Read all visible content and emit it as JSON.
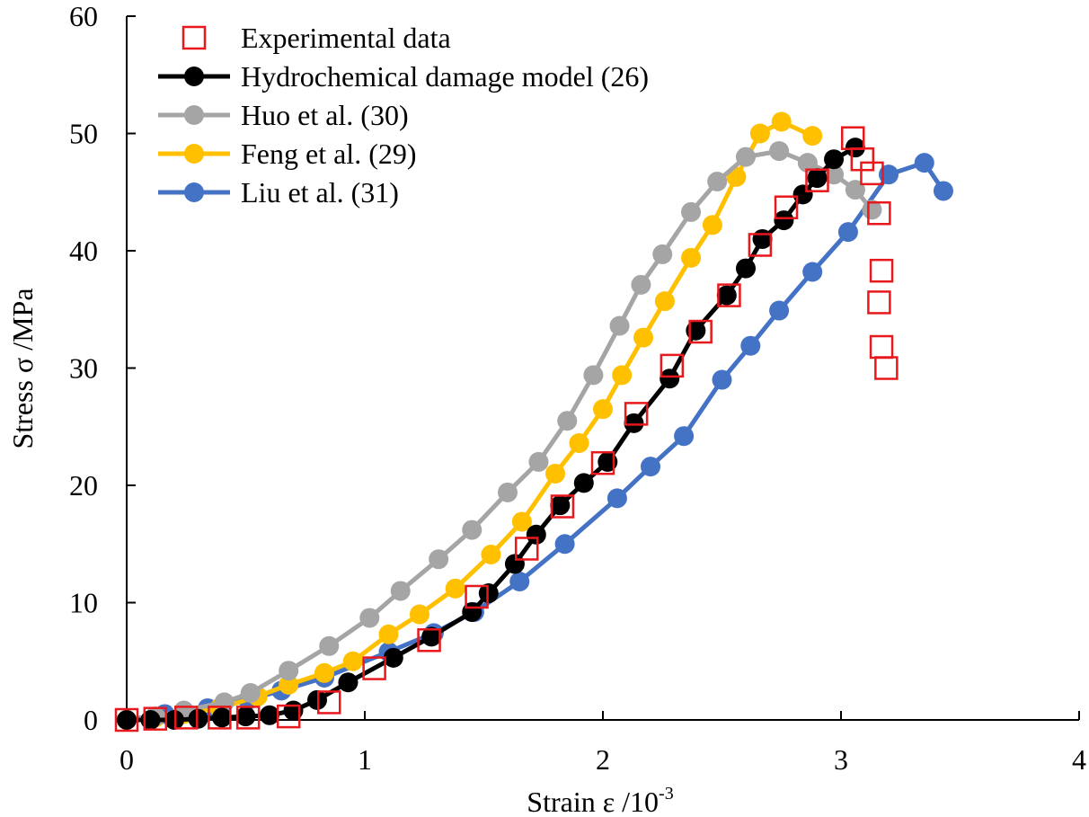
{
  "chart_data": {
    "type": "line",
    "title": "",
    "xlabel": "Strain ε /10",
    "xlabel_superscript": "-3",
    "ylabel": "Stress σ /MPa",
    "xlim": [
      0,
      4
    ],
    "ylim": [
      0,
      60
    ],
    "x_ticks": [
      "0",
      "1",
      "2",
      "3",
      "4"
    ],
    "y_ticks": [
      "0",
      "10",
      "20",
      "30",
      "40",
      "50",
      "60"
    ],
    "grid": false,
    "legend_position": "top-left",
    "series": [
      {
        "name": "Experimental data",
        "style": "marker",
        "marker": "square-open",
        "color": "#e8191c",
        "x": [
          0.0,
          0.12,
          0.25,
          0.39,
          0.51,
          0.68,
          0.85,
          1.04,
          1.27,
          1.47,
          1.68,
          1.83,
          2.0,
          2.14,
          2.29,
          2.41,
          2.53,
          2.66,
          2.77,
          2.9,
          3.05,
          3.09,
          3.13,
          3.16,
          3.17,
          3.16,
          3.17,
          3.19
        ],
        "y": [
          0.0,
          0.1,
          0.2,
          0.2,
          0.2,
          0.3,
          1.5,
          4.4,
          6.8,
          10.5,
          14.6,
          18.2,
          21.9,
          26.1,
          30.2,
          33.1,
          36.2,
          40.5,
          43.7,
          46.0,
          49.6,
          47.8,
          46.6,
          43.2,
          38.3,
          35.6,
          31.8,
          30.0
        ]
      },
      {
        "name": "Hydrochemical damage model (26)",
        "style": "line-marker",
        "marker": "circle",
        "color": "#000000",
        "x": [
          0.0,
          0.1,
          0.2,
          0.3,
          0.4,
          0.5,
          0.6,
          0.7,
          0.8,
          0.93,
          1.12,
          1.28,
          1.45,
          1.52,
          1.63,
          1.72,
          1.82,
          1.92,
          2.02,
          2.13,
          2.28,
          2.39,
          2.52,
          2.6,
          2.67,
          2.76,
          2.84,
          2.9,
          2.97,
          3.06
        ],
        "y": [
          0.0,
          0.0,
          0.0,
          0.1,
          0.2,
          0.3,
          0.4,
          0.8,
          1.7,
          3.2,
          5.3,
          7.1,
          9.2,
          10.8,
          13.3,
          15.8,
          18.3,
          20.2,
          22.0,
          25.3,
          29.1,
          33.2,
          36.2,
          38.5,
          41.0,
          42.6,
          44.8,
          46.2,
          47.8,
          48.8
        ]
      },
      {
        "name": "Huo et al. (30)",
        "style": "line-marker",
        "marker": "circle",
        "color": "#a5a5a5",
        "x": [
          0.0,
          0.12,
          0.24,
          0.41,
          0.52,
          0.68,
          0.85,
          1.02,
          1.15,
          1.31,
          1.45,
          1.6,
          1.73,
          1.85,
          1.96,
          2.07,
          2.16,
          2.25,
          2.37,
          2.48,
          2.6,
          2.74,
          2.86,
          2.97,
          3.06,
          3.13
        ],
        "y": [
          0.0,
          0.3,
          0.8,
          1.5,
          2.3,
          4.2,
          6.3,
          8.7,
          11.0,
          13.7,
          16.2,
          19.4,
          22.0,
          25.5,
          29.4,
          33.6,
          37.1,
          39.7,
          43.3,
          45.9,
          48.0,
          48.5,
          47.5,
          46.5,
          45.2,
          43.5
        ]
      },
      {
        "name": "Feng et al. (29)",
        "style": "line-marker",
        "marker": "circle",
        "color": "#ffc000",
        "x": [
          0.0,
          0.12,
          0.24,
          0.39,
          0.55,
          0.68,
          0.83,
          0.95,
          1.1,
          1.23,
          1.38,
          1.53,
          1.66,
          1.8,
          1.9,
          2.0,
          2.08,
          2.17,
          2.26,
          2.37,
          2.46,
          2.56,
          2.66,
          2.75,
          2.88
        ],
        "y": [
          0.0,
          0.2,
          0.5,
          1.0,
          2.0,
          3.0,
          4.0,
          5.0,
          7.3,
          9.0,
          11.2,
          14.1,
          16.9,
          21.0,
          23.6,
          26.5,
          29.4,
          32.6,
          35.7,
          39.4,
          42.2,
          46.3,
          50.0,
          51.0,
          49.8
        ]
      },
      {
        "name": "Liu et al. (31)",
        "style": "line-marker",
        "marker": "circle",
        "color": "#4472c4",
        "x": [
          0.0,
          0.16,
          0.34,
          0.51,
          0.65,
          0.83,
          1.1,
          1.29,
          1.46,
          1.65,
          1.84,
          2.06,
          2.2,
          2.34,
          2.5,
          2.62,
          2.74,
          2.88,
          3.03,
          3.2,
          3.35,
          3.43
        ],
        "y": [
          0.0,
          0.5,
          1.0,
          1.7,
          2.5,
          3.6,
          5.8,
          7.4,
          9.2,
          11.8,
          15.0,
          18.9,
          21.6,
          24.2,
          29.0,
          31.9,
          34.9,
          38.2,
          41.6,
          46.5,
          47.5,
          45.1
        ]
      }
    ]
  }
}
